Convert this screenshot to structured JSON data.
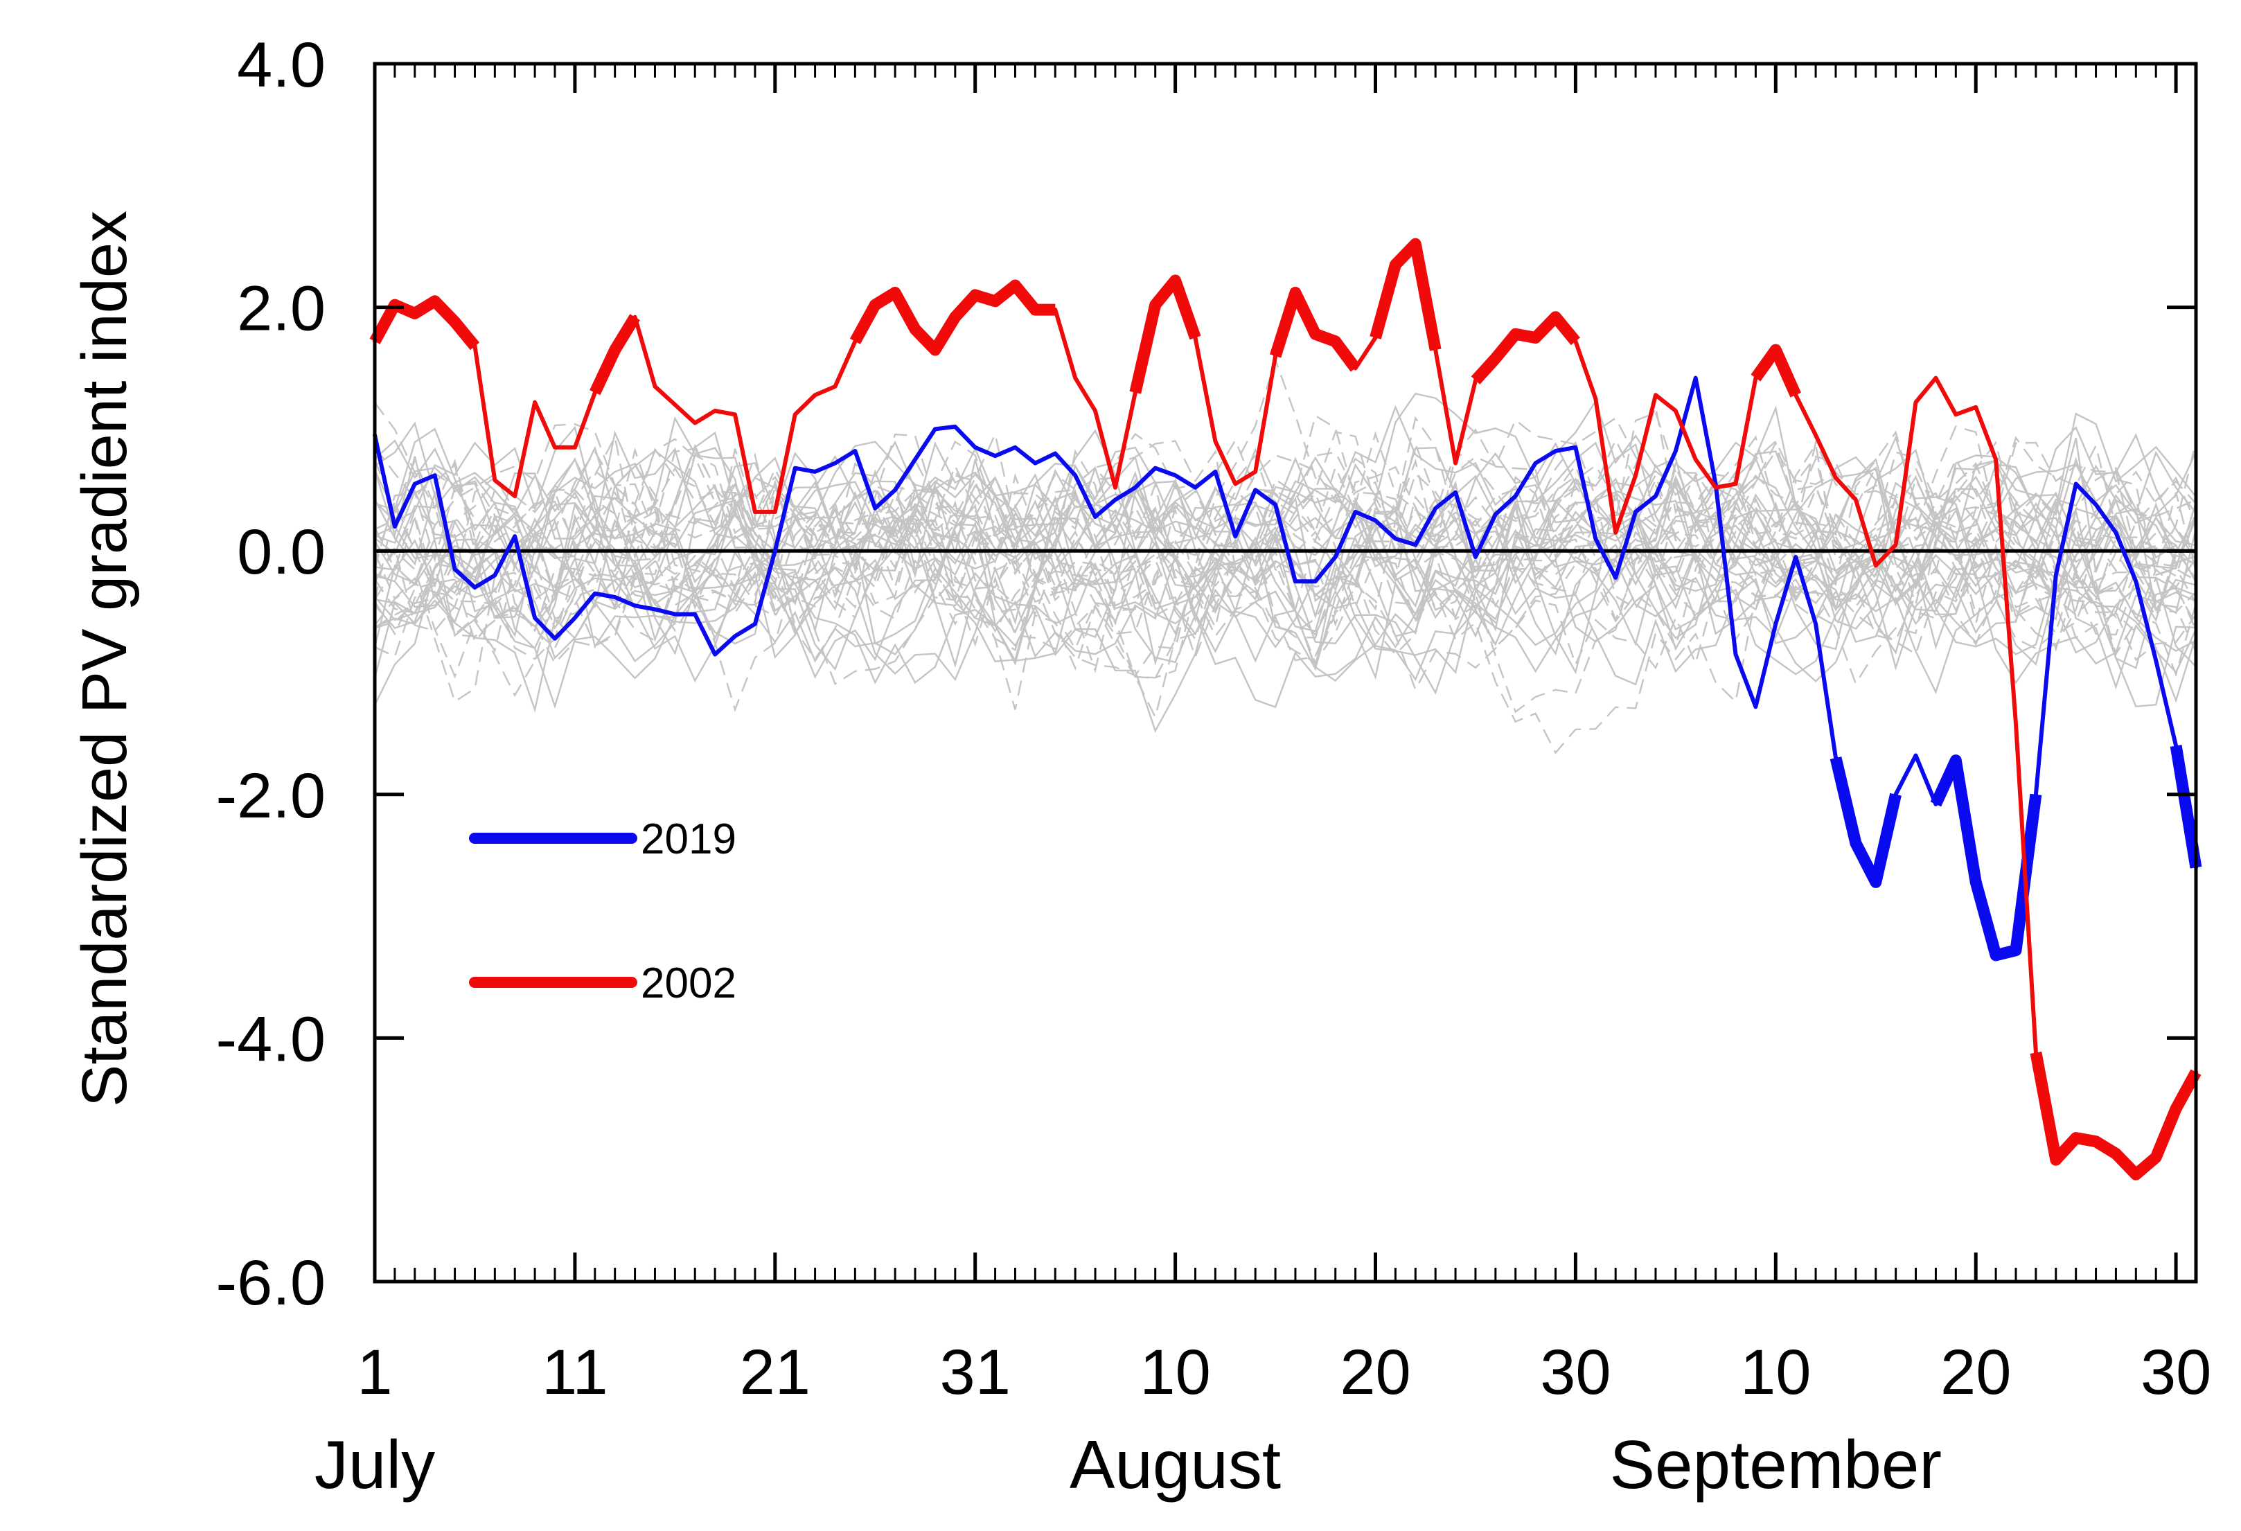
{
  "chart_data": {
    "type": "line",
    "title": "",
    "xlabel": "",
    "ylabel": "Standardized PV gradient index",
    "ylim": [
      -6.0,
      4.0
    ],
    "xlim": [
      1,
      92
    ],
    "yticks": [
      -6.0,
      -4.0,
      -2.0,
      0.0,
      2.0,
      4.0
    ],
    "ytick_labels": [
      "-6.0",
      "-4.0",
      "-2.0",
      "0.0",
      "2.0",
      "4.0"
    ],
    "xticks": [
      1,
      11,
      21,
      31,
      41,
      51,
      61,
      71,
      81,
      91
    ],
    "xtick_labels": [
      "1",
      "11",
      "21",
      "31",
      "10",
      "20",
      "30",
      "10",
      "20",
      "30"
    ],
    "month_labels": [
      {
        "text": "July",
        "day": 1
      },
      {
        "text": "August",
        "day": 41
      },
      {
        "text": "September",
        "day": 71
      }
    ],
    "reference_line": 0.0,
    "grid": false,
    "legend_position": "center-left",
    "colors": {
      "2019": "#0a0af0",
      "2002": "#f00a0a",
      "background_years": "#c4c4c4",
      "axis": "#000000"
    },
    "legend": [
      {
        "name": "2019",
        "color": "#0a0af0"
      },
      {
        "name": "2002",
        "color": "#f00a0a"
      }
    ],
    "series": [
      {
        "name": "2019",
        "color": "#0a0af0",
        "values": [
          0.95,
          0.2,
          0.55,
          0.62,
          -0.15,
          -0.3,
          -0.2,
          0.12,
          -0.55,
          -0.72,
          -0.55,
          -0.35,
          -0.38,
          -0.45,
          -0.48,
          -0.52,
          -0.52,
          -0.85,
          -0.7,
          -0.6,
          0.0,
          0.68,
          0.65,
          0.72,
          0.82,
          0.35,
          0.5,
          0.75,
          1.0,
          1.02,
          0.85,
          0.78,
          0.85,
          0.72,
          0.8,
          0.62,
          0.28,
          0.42,
          0.52,
          0.68,
          0.62,
          0.52,
          0.65,
          0.12,
          0.5,
          0.38,
          -0.25,
          -0.25,
          -0.05,
          0.32,
          0.25,
          0.1,
          0.05,
          0.35,
          0.48,
          -0.05,
          0.3,
          0.45,
          0.72,
          0.82,
          0.85,
          0.1,
          -0.22,
          0.32,
          0.45,
          0.82,
          1.42,
          0.55,
          -0.85,
          -1.28,
          -0.6,
          -0.05,
          -0.6,
          -1.7,
          -2.4,
          -2.72,
          -2.0,
          -1.68,
          -2.08,
          -1.72,
          -2.72,
          -3.32,
          -3.28,
          -2.0,
          -0.2,
          0.55,
          0.38,
          0.15,
          -0.25,
          -0.9,
          -1.6,
          -2.6
        ],
        "thick_segments": [
          [
            74,
            77
          ],
          [
            79,
            84
          ],
          [
            91,
            92
          ]
        ]
      },
      {
        "name": "2002",
        "color": "#f00a0a",
        "values": [
          1.72,
          2.02,
          1.95,
          2.05,
          1.88,
          1.68,
          0.58,
          0.45,
          1.22,
          0.85,
          0.85,
          1.3,
          1.65,
          1.92,
          1.35,
          1.2,
          1.05,
          1.15,
          1.12,
          0.32,
          0.32,
          1.12,
          1.28,
          1.35,
          1.72,
          2.02,
          2.12,
          1.82,
          1.65,
          1.92,
          2.1,
          2.05,
          2.18,
          1.98,
          1.98,
          1.42,
          1.15,
          0.52,
          1.3,
          2.02,
          2.22,
          1.75,
          0.9,
          0.55,
          0.65,
          1.6,
          2.12,
          1.78,
          1.72,
          1.5,
          1.75,
          2.35,
          2.52,
          1.65,
          0.72,
          1.4,
          1.58,
          1.78,
          1.75,
          1.92,
          1.72,
          1.25,
          0.15,
          0.62,
          1.28,
          1.15,
          0.75,
          0.52,
          0.55,
          1.42,
          1.65,
          1.28,
          0.95,
          0.6,
          0.42,
          -0.12,
          0.05,
          1.22,
          1.42,
          1.12,
          1.18,
          0.75,
          -1.42,
          -4.12,
          -5.0,
          -4.82,
          -4.85,
          -4.95,
          -5.12,
          -4.98,
          -4.58,
          -4.28
        ],
        "thick_segments": [
          [
            1,
            6
          ],
          [
            12,
            14
          ],
          [
            25,
            35
          ],
          [
            39,
            42
          ],
          [
            46,
            50
          ],
          [
            51,
            54
          ],
          [
            56,
            61
          ],
          [
            70,
            72
          ],
          [
            84,
            92
          ]
        ]
      }
    ]
  }
}
